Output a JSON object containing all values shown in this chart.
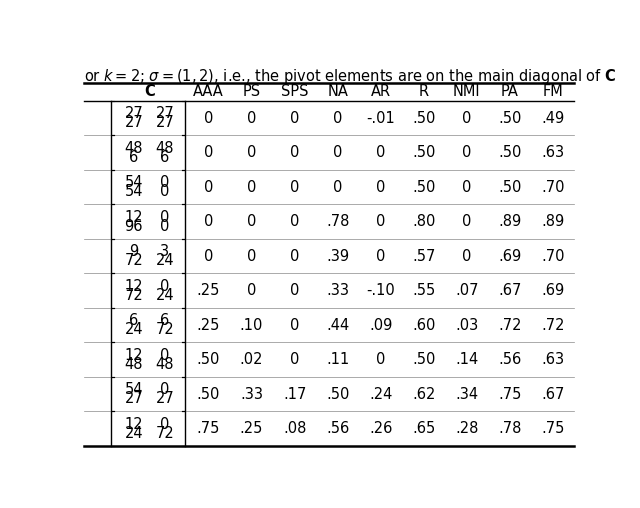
{
  "title": "or $k = 2$; $\\sigma = (1,2)$, i.e., the pivot elements are on the main diagonal of $\\mathbf{C}$",
  "col_headers": [
    "C",
    "AAA",
    "PS",
    "SPS",
    "NA",
    "AR",
    "R",
    "NMI",
    "PA",
    "FM"
  ],
  "c_col_lines": [
    [
      "27",
      "27",
      "27",
      "27"
    ],
    [
      "48",
      "48",
      "6",
      "6"
    ],
    [
      "54",
      "0",
      "54",
      "0"
    ],
    [
      "12",
      "0",
      "96",
      "0"
    ],
    [
      "9",
      "3",
      "72",
      "24"
    ],
    [
      "12",
      "0",
      "72",
      "24"
    ],
    [
      "6",
      "6",
      "24",
      "72"
    ],
    [
      "12",
      "0",
      "48",
      "48"
    ],
    [
      "54",
      "0",
      "27",
      "27"
    ],
    [
      "12",
      "0",
      "24",
      "72"
    ]
  ],
  "data_values": [
    [
      "0",
      "0",
      "0",
      "0",
      "-.01",
      ".50",
      "0",
      ".50",
      ".49"
    ],
    [
      "0",
      "0",
      "0",
      "0",
      "0",
      ".50",
      "0",
      ".50",
      ".63"
    ],
    [
      "0",
      "0",
      "0",
      "0",
      "0",
      ".50",
      "0",
      ".50",
      ".70"
    ],
    [
      "0",
      "0",
      "0",
      ".78",
      "0",
      ".80",
      "0",
      ".89",
      ".89"
    ],
    [
      "0",
      "0",
      "0",
      ".39",
      "0",
      ".57",
      "0",
      ".69",
      ".70"
    ],
    [
      ".25",
      "0",
      "0",
      ".33",
      "-.10",
      ".55",
      ".07",
      ".67",
      ".69"
    ],
    [
      ".25",
      ".10",
      "0",
      ".44",
      ".09",
      ".60",
      ".03",
      ".72",
      ".72"
    ],
    [
      ".50",
      ".02",
      "0",
      ".11",
      "0",
      ".50",
      ".14",
      ".56",
      ".63"
    ],
    [
      ".50",
      ".33",
      ".17",
      ".50",
      ".24",
      ".62",
      ".34",
      ".75",
      ".67"
    ],
    [
      ".75",
      ".25",
      ".08",
      ".56",
      ".26",
      ".65",
      ".28",
      ".78",
      ".75"
    ]
  ],
  "background": "#ffffff",
  "text_color": "#000000",
  "fontsize": 10.5,
  "title_fontsize": 10.5
}
